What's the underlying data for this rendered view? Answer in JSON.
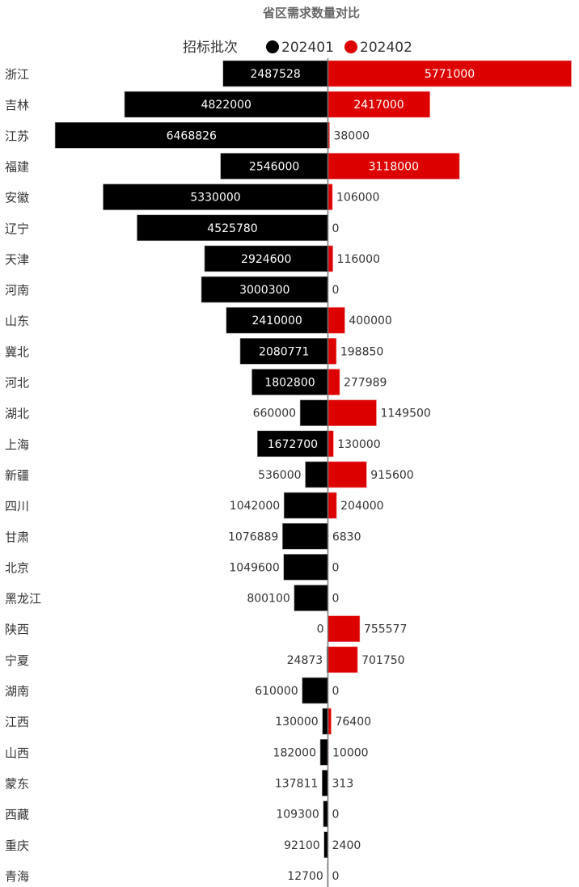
{
  "chart_data": {
    "type": "bar",
    "orientation": "horizontal-butterfly",
    "title": "省区需求数量对比",
    "legend": {
      "title": "招标批次",
      "placement": "top"
    },
    "categories": [
      "浙江",
      "吉林",
      "江苏",
      "福建",
      "安徽",
      "辽宁",
      "天津",
      "河南",
      "山东",
      "冀北",
      "河北",
      "湖北",
      "上海",
      "新疆",
      "四川",
      "甘肃",
      "北京",
      "黑龙江",
      "陕西",
      "宁夏",
      "湖南",
      "江西",
      "山西",
      "蒙东",
      "西藏",
      "重庆",
      "青海"
    ],
    "series": [
      {
        "name": "202401",
        "color": "#000000",
        "direction": "left",
        "values": [
          2487528,
          4822000,
          6468826,
          2546000,
          5330000,
          4525780,
          2924600,
          3000300,
          2410000,
          2080771,
          1802800,
          660000,
          1672700,
          536000,
          1042000,
          1076889,
          1049600,
          800100,
          0,
          24873,
          610000,
          130000,
          182000,
          137811,
          109300,
          92100,
          12700
        ]
      },
      {
        "name": "202402",
        "color": "#dd0000",
        "direction": "right",
        "values": [
          5771000,
          2417000,
          38000,
          3118000,
          106000,
          0,
          116000,
          0,
          400000,
          198850,
          277989,
          1149500,
          130000,
          915600,
          204000,
          6830,
          0,
          0,
          755577,
          701750,
          0,
          76400,
          10000,
          313,
          0,
          2400,
          0
        ]
      }
    ],
    "grid": false
  }
}
